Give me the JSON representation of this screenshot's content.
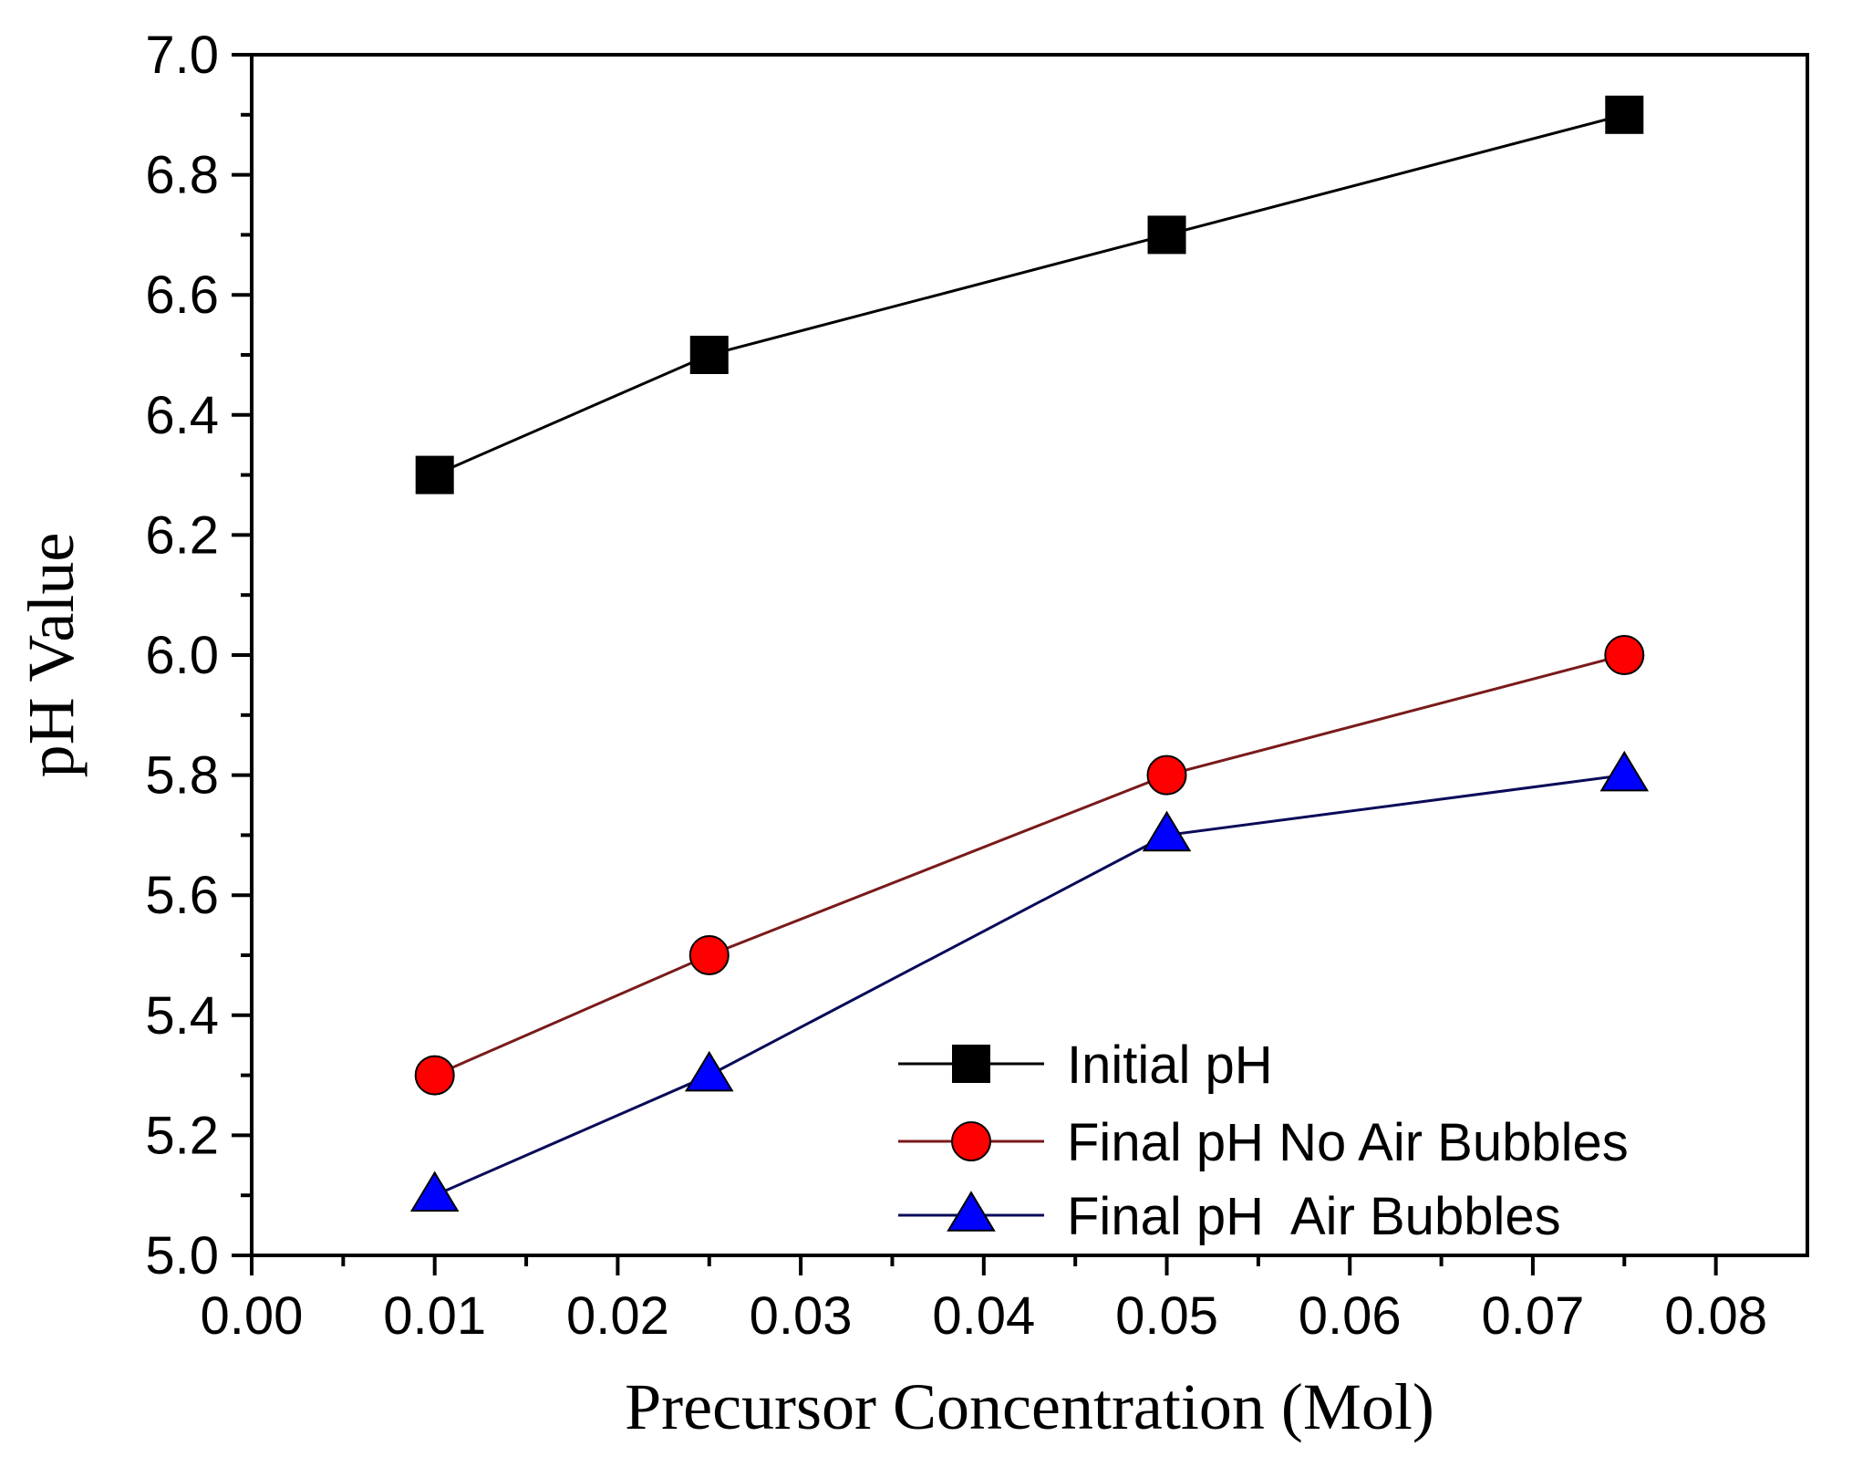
{
  "chart_data": {
    "type": "line",
    "title": "",
    "xlabel": "Precursor Concentration (Mol)",
    "ylabel": "pH Value",
    "xlim": [
      0.0,
      0.085
    ],
    "ylim": [
      5.0,
      7.0
    ],
    "x_ticks": [
      0.0,
      0.01,
      0.02,
      0.03,
      0.04,
      0.05,
      0.06,
      0.07,
      0.08
    ],
    "x_tick_labels": [
      "0.00",
      "0.01",
      "0.02",
      "0.03",
      "0.04",
      "0.05",
      "0.06",
      "0.07",
      "0.08"
    ],
    "y_ticks": [
      5.0,
      5.2,
      5.4,
      5.6,
      5.8,
      6.0,
      6.2,
      6.4,
      6.6,
      6.8,
      7.0
    ],
    "y_tick_labels": [
      "5.0",
      "5.2",
      "5.4",
      "5.6",
      "5.8",
      "6.0",
      "6.2",
      "6.4",
      "6.6",
      "6.8",
      "7.0"
    ],
    "grid": false,
    "legend_position": "bottom-right",
    "x": [
      0.01,
      0.025,
      0.05,
      0.075
    ],
    "series": [
      {
        "name": "Initial pH",
        "values": [
          6.3,
          6.5,
          6.7,
          6.9
        ],
        "marker": "square",
        "line_color": "#000000",
        "marker_color": "#000000"
      },
      {
        "name": "Final pH No Air Bubbles",
        "values": [
          5.3,
          5.5,
          5.8,
          6.0
        ],
        "marker": "circle",
        "line_color": "#7a1a1a",
        "marker_color": "#ff0000"
      },
      {
        "name": "Final pH  Air Bubbles",
        "values": [
          5.1,
          5.3,
          5.7,
          5.8
        ],
        "marker": "triangle",
        "line_color": "#0a0a5a",
        "marker_color": "#0000ff"
      }
    ]
  }
}
